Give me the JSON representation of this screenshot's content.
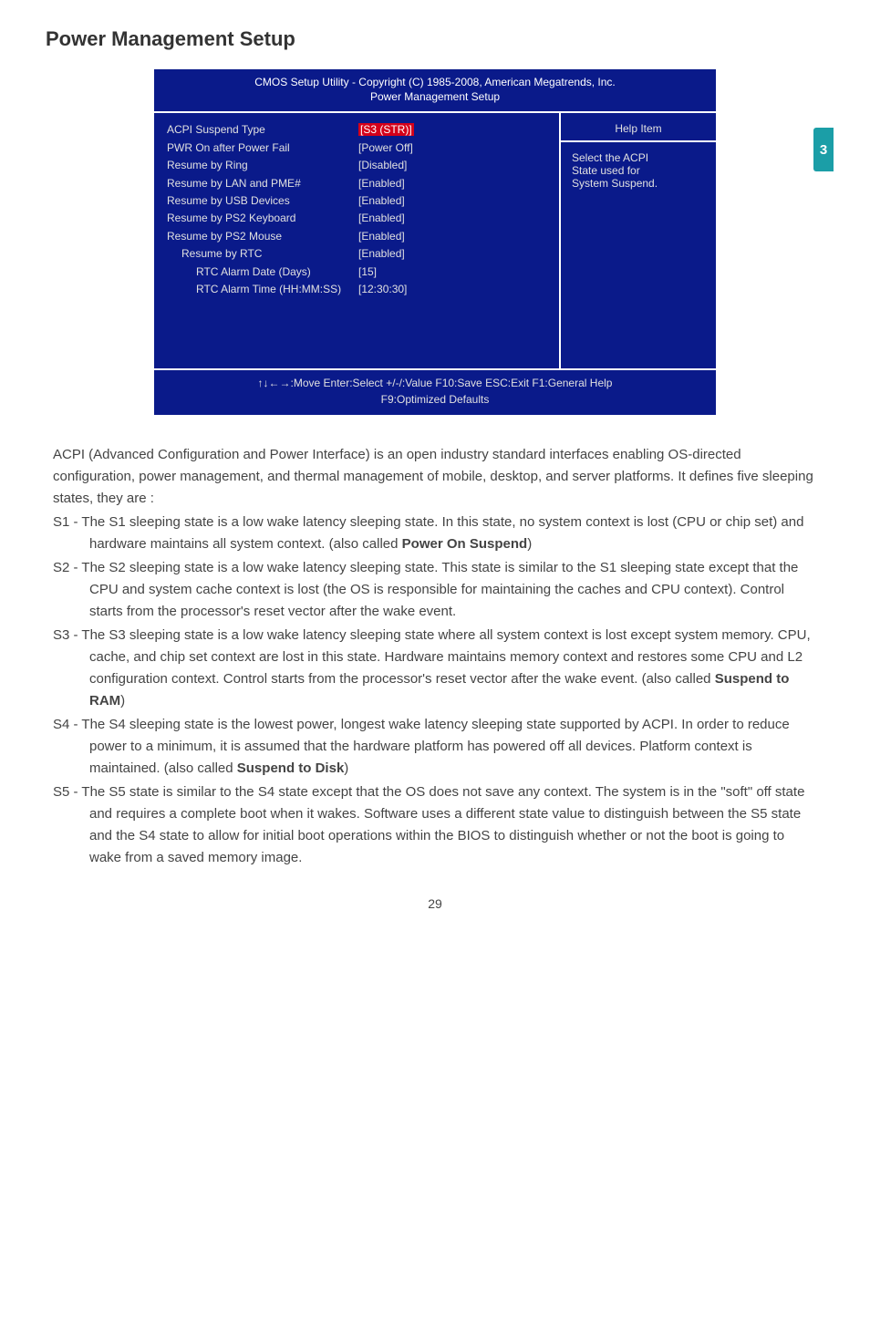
{
  "page_title": "Power Management Setup",
  "side_tab": "3",
  "bios": {
    "header_line1": "CMOS Setup Utility - Copyright (C) 1985-2008, American Megatrends, Inc.",
    "header_line2": "Power Management Setup",
    "rows": [
      {
        "label": "ACPI Suspend Type",
        "value": "[S3 (STR)]",
        "highlight": true,
        "indent": 0
      },
      {
        "label": "PWR On after Power Fail",
        "value": "[Power Off]",
        "highlight": false,
        "indent": 0
      },
      {
        "label": "Resume by Ring",
        "value": "[Disabled]",
        "highlight": false,
        "indent": 0
      },
      {
        "label": "Resume by LAN and PME#",
        "value": "[Enabled]",
        "highlight": false,
        "indent": 0
      },
      {
        "label": "Resume by USB Devices",
        "value": "[Enabled]",
        "highlight": false,
        "indent": 0
      },
      {
        "label": "Resume by PS2 Keyboard",
        "value": "[Enabled]",
        "highlight": false,
        "indent": 0
      },
      {
        "label": "Resume by PS2 Mouse",
        "value": "[Enabled]",
        "highlight": false,
        "indent": 0
      },
      {
        "label": "Resume by RTC",
        "value": "[Enabled]",
        "highlight": false,
        "indent": 1
      },
      {
        "label": "RTC Alarm Date (Days)",
        "value": "[15]",
        "highlight": false,
        "indent": 2
      },
      {
        "label": "RTC Alarm Time (HH:MM:SS)",
        "value": "[12:30:30]",
        "highlight": false,
        "indent": 2
      }
    ],
    "help_title": "Help Item",
    "help_body": [
      "Select the ACPI",
      "State used for",
      "System Suspend."
    ],
    "footer_line1": "↑↓←→:Move   Enter:Select    +/-/:Value    F10:Save     ESC:Exit    F1:General Help",
    "footer_line2": "F9:Optimized Defaults"
  },
  "body": {
    "intro": [
      "ACPI (Advanced Configuration and Power Interface) is an open industry standard interfaces enabling OS-directed configuration, power management, and thermal management of mobile, desktop, and server platforms. It defines five sleeping states, they are :"
    ],
    "items": [
      {
        "lead": "S1 - ",
        "text": "The S1 sleeping state is a low wake latency sleeping state. In this state, no system context is lost (CPU or chip set) and hardware maintains all system context. (also called ",
        "bold": "Power On Suspend",
        "tail": ")"
      },
      {
        "lead": "S2 - ",
        "text": "The S2 sleeping state is a low wake latency sleeping state. This state is similar to the S1 sleeping state except that the CPU and system cache context is lost (the OS is responsible for maintaining the caches and CPU context). Control starts from the processor's reset vector after the wake event.",
        "bold": "",
        "tail": ""
      },
      {
        "lead": "S3 - ",
        "text": "The S3 sleeping state is a low wake latency sleeping state where all system context is lost except system memory. CPU, cache, and chip set context are lost in this state. Hardware maintains memory context and restores some CPU and L2 configuration context. Control starts from the processor's reset vector after the wake event. (also called ",
        "bold": "Suspend to RAM",
        "tail": ")"
      },
      {
        "lead": "S4 - ",
        "text": "The S4 sleeping state is the lowest power, longest wake latency sleeping state supported by ACPI. In order to reduce power to a minimum, it is assumed that the hardware platform has powered off all devices. Platform context is maintained. (also called ",
        "bold": "Suspend to Disk",
        "tail": ")"
      },
      {
        "lead": "S5 - ",
        "text": "The S5 state is similar to the S4 state except that the OS does not save any context. The system is in the \"soft\" off state and requires a complete boot when it wakes. Software uses a different state value to distinguish between the S5 state and the S4 state to allow for initial boot operations within the BIOS to distinguish whether or not the boot is going to wake from a saved memory image.",
        "bold": "",
        "tail": ""
      }
    ]
  },
  "page_number": "29"
}
